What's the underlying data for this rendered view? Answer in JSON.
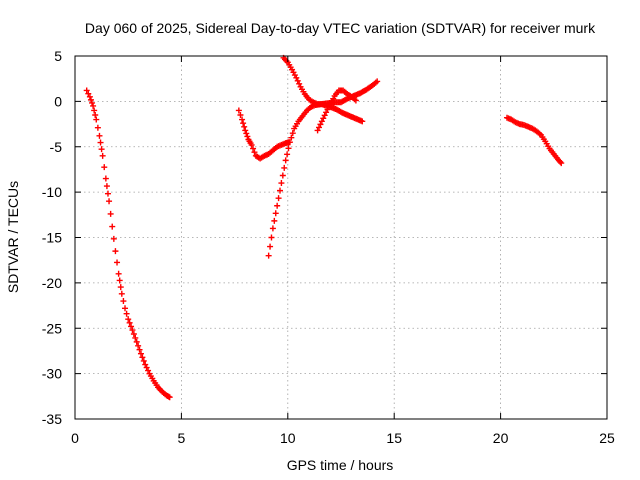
{
  "chart_data": {
    "type": "scatter",
    "title": "Day 060 of 2025, Sidereal Day-to-day VTEC variation (SDTVAR) for receiver murk",
    "xlabel": "GPS time / hours",
    "ylabel": "SDTVAR / TECUs",
    "xlim": [
      0,
      25
    ],
    "ylim": [
      -35,
      5
    ],
    "xticks": [
      0,
      5,
      10,
      15,
      20,
      25
    ],
    "yticks": [
      -35,
      -30,
      -25,
      -20,
      -15,
      -10,
      -5,
      0,
      5
    ],
    "grid": true,
    "marker": "plus",
    "color": "#ff0000",
    "series": [
      {
        "x": [
          0.55,
          0.7,
          0.85,
          1.0,
          1.15,
          1.3,
          1.45,
          1.6,
          1.75,
          1.9,
          2.05,
          2.2,
          2.35,
          2.5,
          2.7,
          2.9,
          3.1,
          3.3,
          3.5,
          3.7,
          3.9,
          4.1,
          4.3,
          4.45
        ],
        "y": [
          1.2,
          0.5,
          -0.5,
          -2.0,
          -3.8,
          -6.0,
          -8.5,
          -11.0,
          -13.8,
          -16.5,
          -19.0,
          -21.2,
          -22.8,
          -24.0,
          -25.2,
          -26.5,
          -27.8,
          -29.0,
          -30.0,
          -30.8,
          -31.5,
          -32.0,
          -32.4,
          -32.6
        ]
      },
      {
        "x": [
          7.7,
          7.85,
          8.0,
          8.15,
          8.3,
          8.5,
          8.7,
          8.9,
          9.1,
          9.3,
          9.5,
          9.7,
          9.9,
          10.05
        ],
        "y": [
          -1.0,
          -2.0,
          -3.2,
          -4.2,
          -4.8,
          -6.0,
          -6.3,
          -6.0,
          -5.8,
          -5.4,
          -5.0,
          -4.8,
          -4.6,
          -4.5
        ]
      },
      {
        "x": [
          9.1,
          9.3,
          9.5,
          9.7,
          9.9,
          10.1,
          10.3,
          10.5,
          10.7,
          10.9,
          11.1,
          11.3,
          11.6,
          11.9,
          12.2,
          12.5,
          12.8,
          13.1,
          13.4,
          13.7,
          14.0,
          14.2
        ],
        "y": [
          -17.0,
          -14.0,
          -11.5,
          -9.0,
          -6.5,
          -4.5,
          -3.0,
          -2.2,
          -1.6,
          -1.0,
          -0.6,
          -0.4,
          -0.3,
          -0.2,
          -0.1,
          -0.1,
          0.3,
          0.6,
          0.9,
          1.3,
          1.8,
          2.2
        ]
      },
      {
        "x": [
          9.8,
          10.0,
          10.2,
          10.4,
          10.6,
          10.8,
          11.0,
          11.2,
          11.4,
          11.6,
          11.8,
          12.0,
          12.3,
          12.6,
          12.9,
          13.2,
          13.5
        ],
        "y": [
          4.8,
          4.3,
          3.5,
          2.6,
          1.6,
          0.8,
          0.2,
          -0.1,
          -0.3,
          -0.3,
          -0.5,
          -0.6,
          -0.9,
          -1.3,
          -1.6,
          -1.9,
          -2.2
        ]
      },
      {
        "x": [
          11.4,
          11.6,
          11.8,
          12.0,
          12.2,
          12.4,
          12.6,
          12.8,
          13.0,
          13.2
        ],
        "y": [
          -3.2,
          -2.2,
          -1.2,
          -0.3,
          0.6,
          1.2,
          1.2,
          0.8,
          0.5,
          0.1
        ]
      },
      {
        "x": [
          20.3,
          20.5,
          20.7,
          20.9,
          21.1,
          21.3,
          21.5,
          21.7,
          21.9,
          22.1,
          22.3,
          22.5,
          22.7,
          22.85
        ],
        "y": [
          -1.8,
          -2.0,
          -2.3,
          -2.5,
          -2.6,
          -2.8,
          -3.0,
          -3.3,
          -3.7,
          -4.4,
          -5.2,
          -5.8,
          -6.4,
          -6.8
        ]
      }
    ]
  }
}
